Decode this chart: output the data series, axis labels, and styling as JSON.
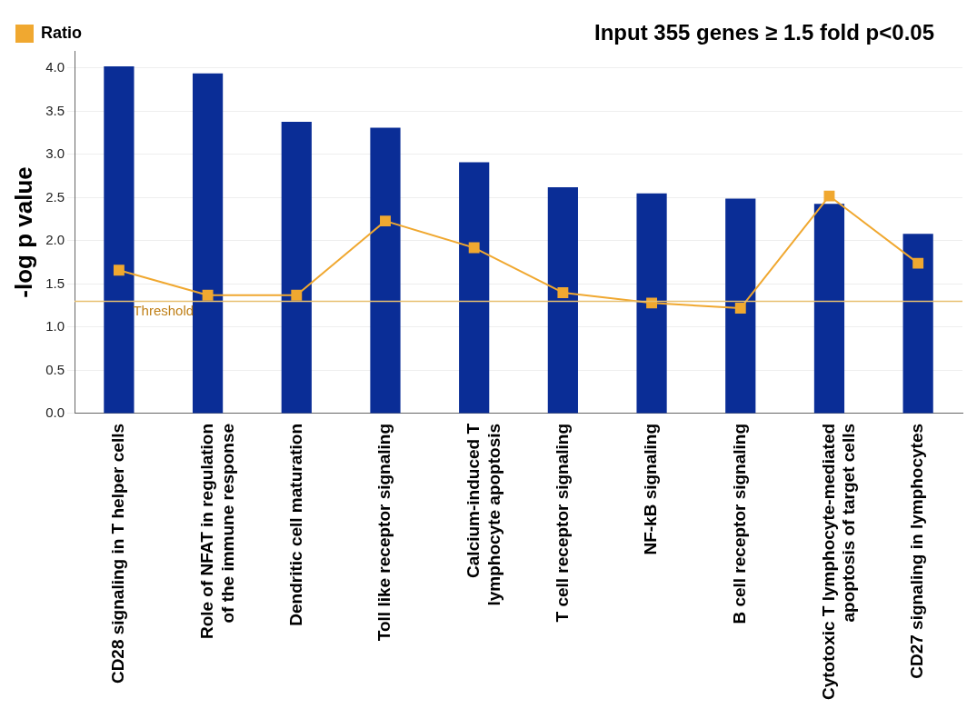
{
  "chart_data": {
    "type": "bar",
    "title": "Input 355 genes ≥ 1.5 fold  p<0.05",
    "ylabel": "-log p value",
    "categories": [
      "CD28 signaling in T helper cells",
      "Role of NFAT in regulation of the immune response",
      "Dendritic cell maturation",
      "Toll like receptor signaling",
      "Calcium-induced T lymphocyte apoptosis",
      "T cell receptor signaling",
      "NF-kB signaling",
      "B cell receptor signaling",
      "Cytotoxic T lymphocyte-mediated apoptosis of target cells",
      "CD27 signaling in lymphocytes"
    ],
    "series": [
      {
        "color": "#0a2d96",
        "values": [
          4.02,
          3.94,
          3.38,
          3.31,
          2.91,
          2.62,
          2.55,
          2.49,
          2.43,
          2.08
        ]
      },
      {
        "type": "line",
        "name": "Ratio",
        "color": "#f0a830",
        "marker": "square",
        "values": [
          1.66,
          1.37,
          1.37,
          2.23,
          1.92,
          1.4,
          1.28,
          1.22,
          2.52,
          1.74
        ]
      }
    ],
    "ylim": [
      0,
      4.2
    ],
    "yticks": [
      {
        "value": 0,
        "label": "0.0"
      },
      0.5,
      {
        "value": 1,
        "label": "1.0"
      },
      1.5,
      {
        "value": 2,
        "label": "2.0"
      },
      2.5,
      {
        "value": 3,
        "label": "3.0"
      },
      3.5,
      {
        "value": 4,
        "label": "4.0"
      }
    ],
    "ref_lines": [
      {
        "axis": "y",
        "value": 1.3,
        "label": "Threshold",
        "color": "#e8c070"
      }
    ],
    "grid": "y",
    "legend": "top left"
  }
}
